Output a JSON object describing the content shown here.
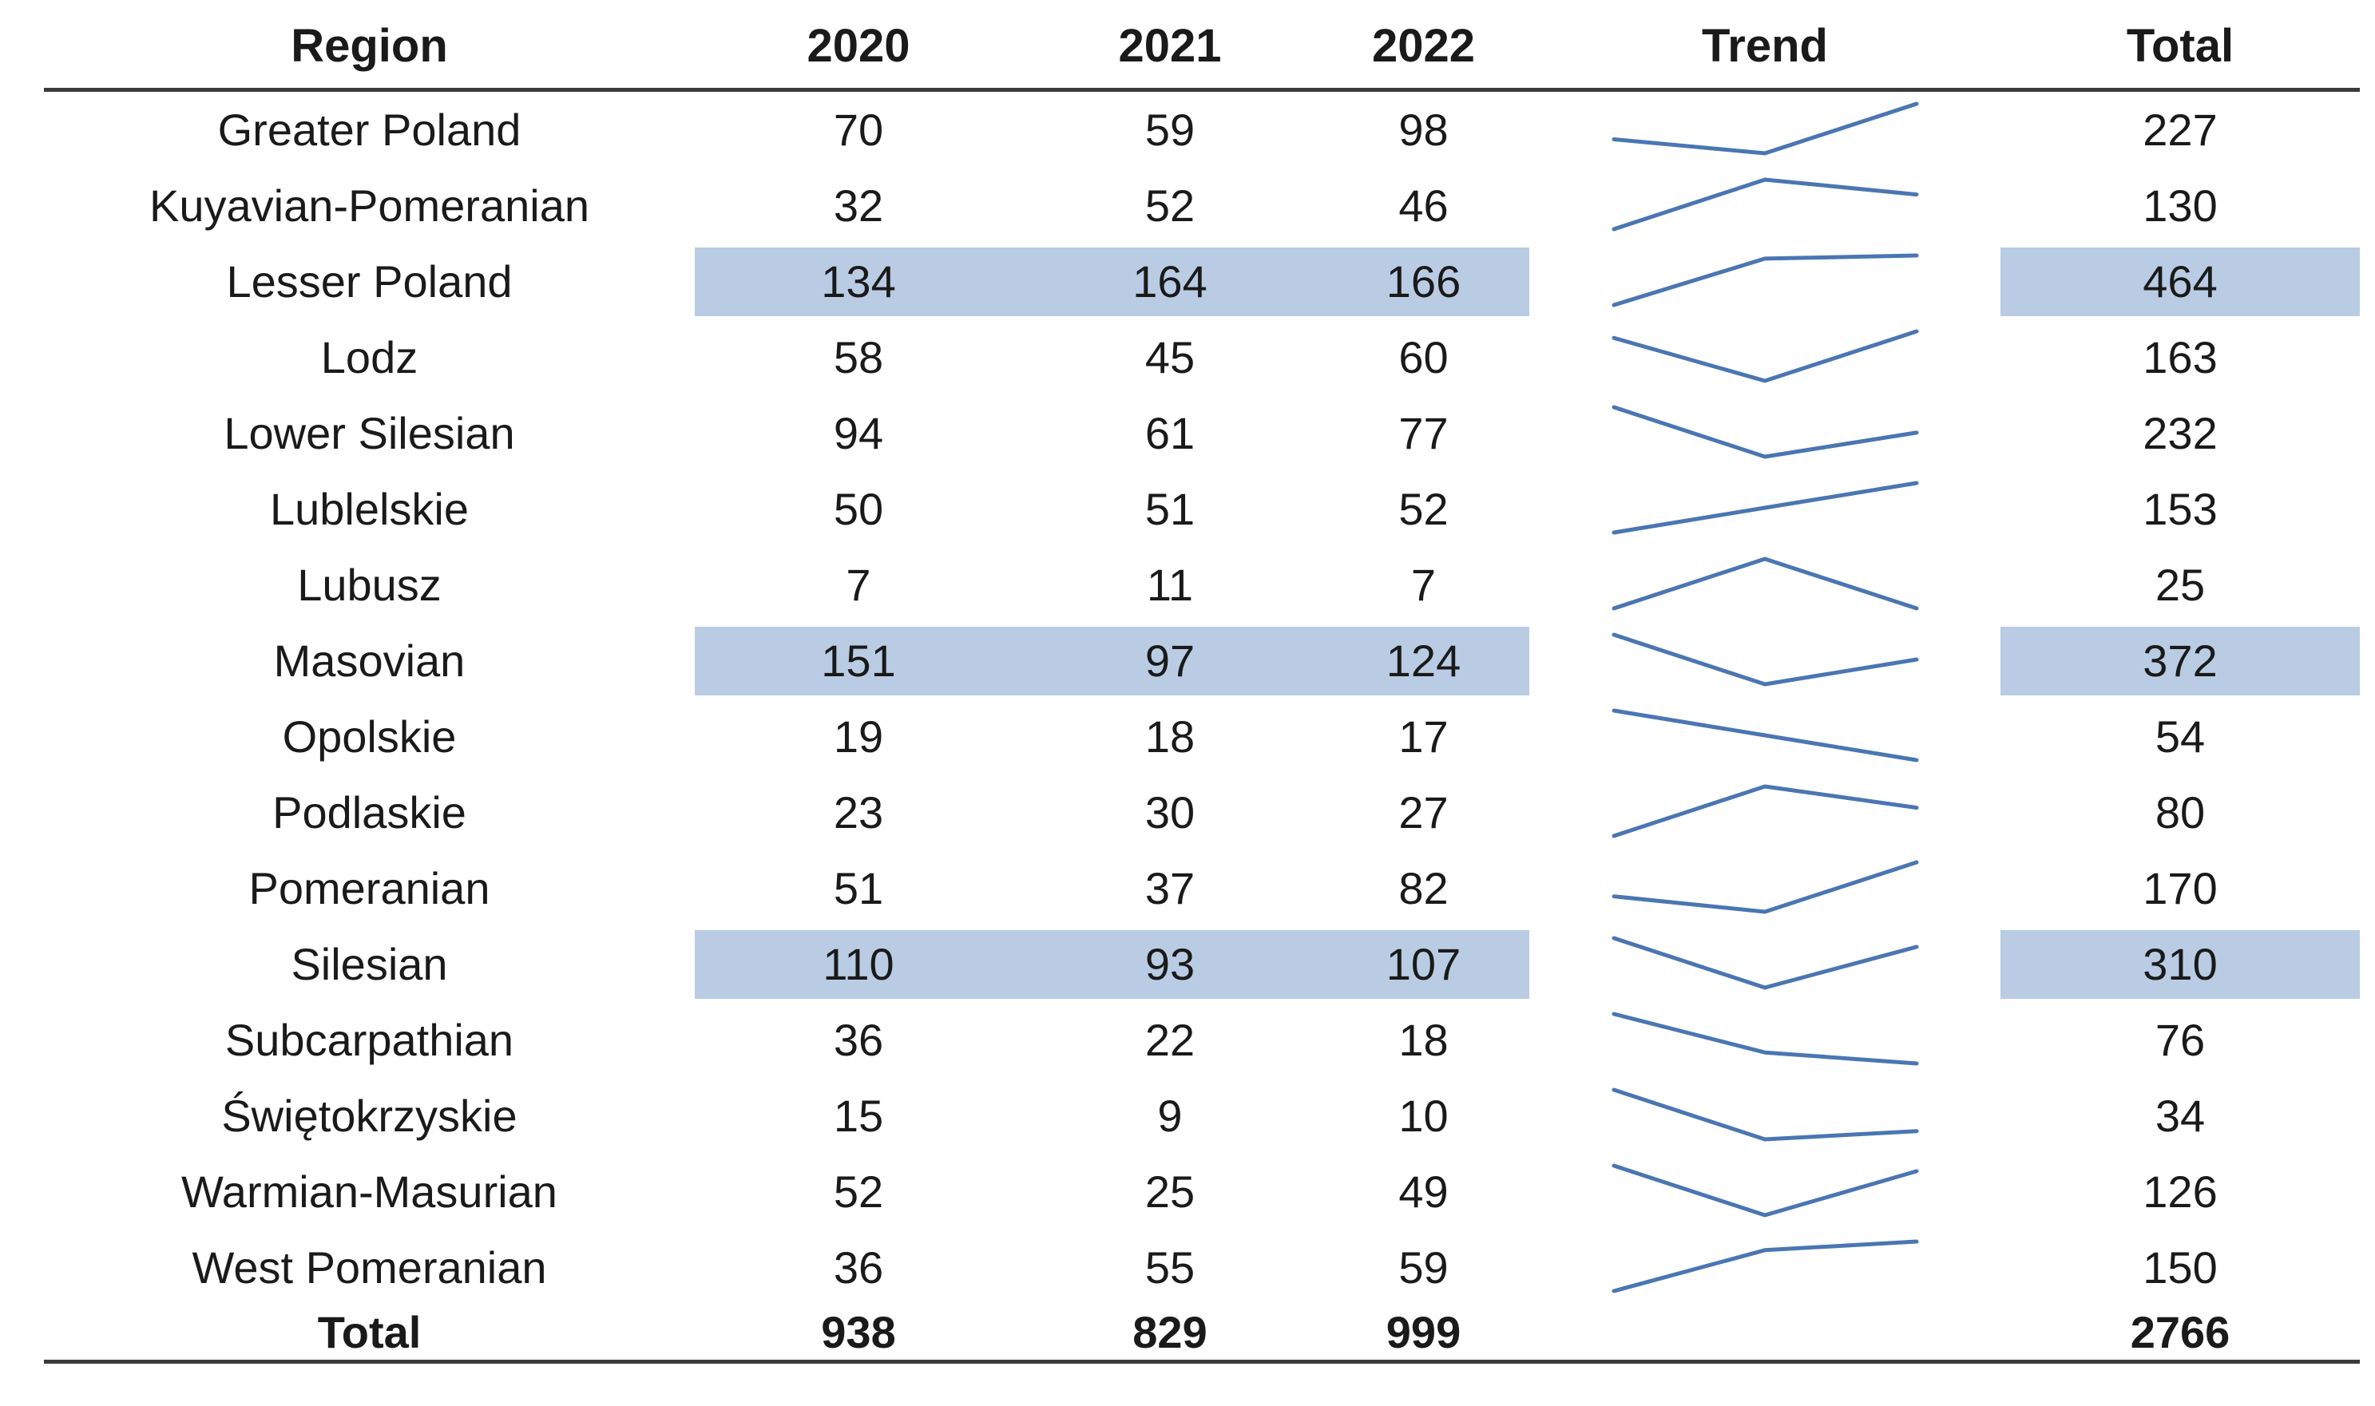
{
  "colors": {
    "row_highlight": "#b9cce4",
    "sparkline": "#4a76b2",
    "rule": "#3a3a3a",
    "text": "#1a1a1a",
    "background": "#ffffff"
  },
  "chart_data": {
    "type": "table",
    "title": "",
    "columns": [
      "Region",
      "2020",
      "2021",
      "2022",
      "Trend",
      "Total"
    ],
    "trend_column_note": "3-point line sparkline of 2020-2022 values, normalized per row",
    "rows": [
      {
        "region": "Greater Poland",
        "values": [
          70,
          59,
          98
        ],
        "total": 227,
        "highlighted": false
      },
      {
        "region": "Kuyavian-Pomeranian",
        "values": [
          32,
          52,
          46
        ],
        "total": 130,
        "highlighted": false
      },
      {
        "region": "Lesser Poland",
        "values": [
          134,
          164,
          166
        ],
        "total": 464,
        "highlighted": true
      },
      {
        "region": "Lodz",
        "values": [
          58,
          45,
          60
        ],
        "total": 163,
        "highlighted": false
      },
      {
        "region": "Lower Silesian",
        "values": [
          94,
          61,
          77
        ],
        "total": 232,
        "highlighted": false
      },
      {
        "region": "Lublelskie",
        "values": [
          50,
          51,
          52
        ],
        "total": 153,
        "highlighted": false
      },
      {
        "region": "Lubusz",
        "values": [
          7,
          11,
          7
        ],
        "total": 25,
        "highlighted": false
      },
      {
        "region": "Masovian",
        "values": [
          151,
          97,
          124
        ],
        "total": 372,
        "highlighted": true
      },
      {
        "region": "Opolskie",
        "values": [
          19,
          18,
          17
        ],
        "total": 54,
        "highlighted": false
      },
      {
        "region": "Podlaskie",
        "values": [
          23,
          30,
          27
        ],
        "total": 80,
        "highlighted": false
      },
      {
        "region": "Pomeranian",
        "values": [
          51,
          37,
          82
        ],
        "total": 170,
        "highlighted": false
      },
      {
        "region": "Silesian",
        "values": [
          110,
          93,
          107
        ],
        "total": 310,
        "highlighted": true
      },
      {
        "region": "Subcarpathian",
        "values": [
          36,
          22,
          18
        ],
        "total": 76,
        "highlighted": false
      },
      {
        "region": "Świętokrzyskie",
        "values": [
          15,
          9,
          10
        ],
        "total": 34,
        "highlighted": false
      },
      {
        "region": "Warmian-Masurian",
        "values": [
          52,
          25,
          49
        ],
        "total": 126,
        "highlighted": false
      },
      {
        "region": "West Pomeranian",
        "values": [
          36,
          55,
          59
        ],
        "total": 150,
        "highlighted": false
      }
    ],
    "totals": {
      "label": "Total",
      "values": [
        938,
        829,
        999
      ],
      "total": 2766
    }
  }
}
